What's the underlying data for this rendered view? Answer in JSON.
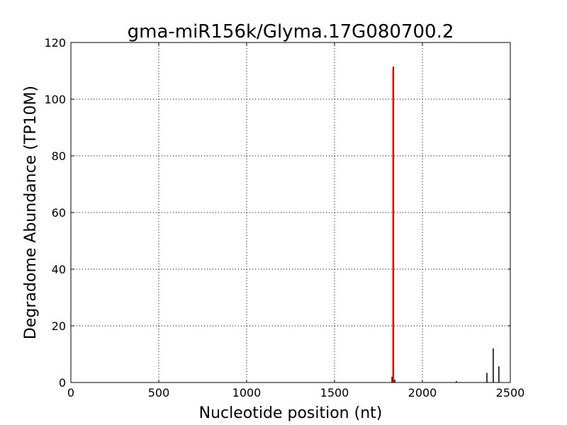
{
  "chart_data": {
    "type": "bar",
    "title": "gma-miR156k/Glyma.17G080700.2",
    "xlabel": "Nucleotide position (nt)",
    "ylabel": "Degradome Abundance (TP10M)",
    "xlim": [
      0,
      2500
    ],
    "ylim": [
      0,
      120
    ],
    "xticks": [
      0,
      500,
      1000,
      1500,
      2000,
      2500
    ],
    "yticks": [
      0,
      20,
      40,
      60,
      80,
      100,
      120
    ],
    "grid": true,
    "series": [
      {
        "color": "#000000",
        "x": [
          1827,
          1835,
          1843,
          2193,
          2367,
          2403,
          2435
        ],
        "values": [
          2,
          111.5,
          1,
          0.5,
          3.4,
          12,
          5.7
        ]
      }
    ],
    "highlight": {
      "color": "#ff0000",
      "x": 1834,
      "value": 111
    }
  }
}
